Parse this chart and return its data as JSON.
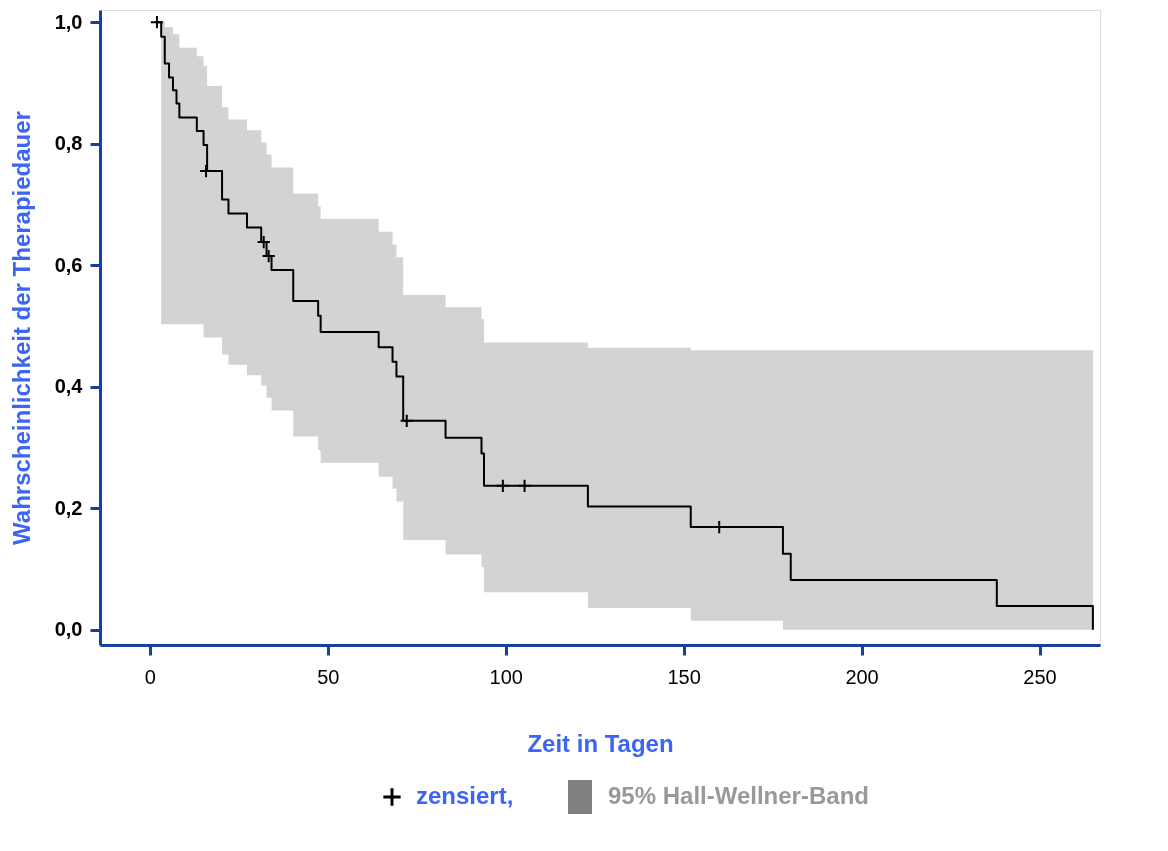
{
  "chart_data": {
    "type": "step",
    "xlabel": "Zeit in Tagen",
    "ylabel": "Wahrscheinlichkeit der Therapiedauer",
    "xlim": [
      -14,
      267
    ],
    "xticks": [
      0,
      50,
      100,
      150,
      200,
      250
    ],
    "ylim": [
      -0.025,
      1.02
    ],
    "yticks": [
      {
        "value": 0,
        "label": "0,0"
      },
      {
        "value": 0.2,
        "label": "0,2"
      },
      {
        "value": 0.4,
        "label": "0,4"
      },
      {
        "value": 0.6,
        "label": "0,6"
      },
      {
        "value": 0.8,
        "label": "0,8"
      },
      {
        "value": 1,
        "label": "1,0"
      }
    ],
    "grid": false,
    "legend": "bottom",
    "annotations": [
      "95% Hall-Wellner-Band"
    ],
    "series": [
      {
        "color": "#000000",
        "x": [
          2,
          3.2,
          4.2,
          5.4,
          6.5,
          7.5,
          8.3,
          13.2,
          15.1,
          16.1,
          20.3,
          22.1,
          27.3,
          31.3,
          32.8,
          34.2,
          40.3,
          47.3,
          48.0,
          64.3,
          68.2,
          69.3,
          71.2,
          83.1,
          93.2,
          93.9,
          123.1,
          152,
          177.9,
          180.1,
          238,
          265
        ],
        "values": [
          1.0,
          0.976,
          0.932,
          0.909,
          0.888,
          0.866,
          0.843,
          0.821,
          0.798,
          0.755,
          0.708,
          0.685,
          0.662,
          0.638,
          0.615,
          0.592,
          0.541,
          0.517,
          0.49,
          0.465,
          0.441,
          0.417,
          0.344,
          0.316,
          0.29,
          0.237,
          0.203,
          0.169,
          0.125,
          0.082,
          0.039,
          0.0
        ],
        "lower": [
          null,
          0.503,
          0.503,
          0.503,
          0.503,
          0.503,
          0.503,
          0.503,
          0.481,
          0.481,
          0.453,
          0.436,
          0.419,
          0.402,
          0.382,
          0.361,
          0.318,
          0.296,
          0.275,
          0.252,
          0.232,
          0.211,
          0.148,
          0.124,
          0.103,
          0.062,
          0.036,
          0.015,
          0.0,
          0.0,
          0.0,
          0.0
        ],
        "upper": [
          null,
          1.0,
          0.992,
          0.992,
          0.98,
          0.98,
          0.958,
          0.944,
          0.928,
          0.895,
          0.86,
          0.84,
          0.822,
          0.802,
          0.782,
          0.761,
          0.718,
          0.697,
          0.676,
          0.655,
          0.634,
          0.613,
          0.551,
          0.531,
          0.511,
          0.473,
          0.464,
          0.46,
          0.46,
          0.46,
          0.46,
          0.46
        ]
      },
      {
        "type": "scatter",
        "name": "zensiert,",
        "color": "#000000",
        "marker": "cross",
        "x": [
          2,
          15.8,
          32.0,
          33.4,
          72.2,
          99.2,
          105.3,
          160
        ],
        "values": [
          1.0,
          0.755,
          0.638,
          0.615,
          0.344,
          0.237,
          0.237,
          0.169
        ]
      }
    ]
  }
}
